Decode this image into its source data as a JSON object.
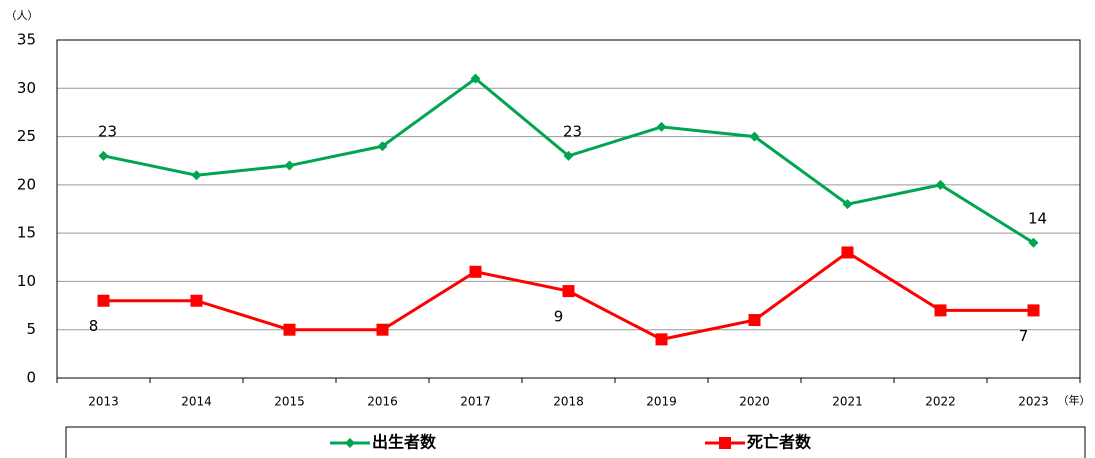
{
  "chart_data": {
    "type": "line",
    "y_unit": "（人）",
    "x_unit": "（年）",
    "categories": [
      "2013",
      "2014",
      "2015",
      "2016",
      "2017",
      "2018",
      "2019",
      "2020",
      "2021",
      "2022",
      "2023"
    ],
    "series": [
      {
        "name": "出生者数",
        "color": "#00a550",
        "marker": "diamond",
        "values": [
          23,
          21,
          22,
          24,
          31,
          23,
          26,
          25,
          18,
          20,
          14
        ],
        "value_labels": [
          "23",
          null,
          null,
          null,
          null,
          "23",
          null,
          null,
          null,
          null,
          "14"
        ]
      },
      {
        "name": "死亡者数",
        "color": "#ff0000",
        "marker": "square",
        "values": [
          8,
          8,
          5,
          5,
          11,
          9,
          4,
          6,
          13,
          7,
          7
        ],
        "value_labels": [
          "8",
          null,
          null,
          null,
          null,
          "9",
          null,
          null,
          null,
          null,
          "7"
        ]
      }
    ],
    "ylim": [
      0,
      35
    ],
    "yticks": [
      0,
      5,
      10,
      15,
      20,
      25,
      30,
      35
    ],
    "grid": true
  }
}
